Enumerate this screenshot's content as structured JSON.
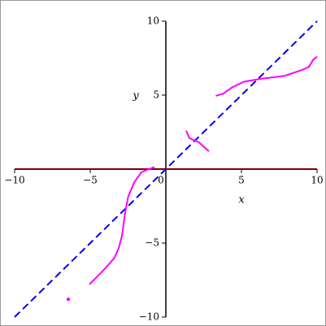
{
  "chart_data": {
    "type": "line",
    "x_label": "x",
    "y_label": "y",
    "xlim": [
      -10,
      10
    ],
    "ylim": [
      -10,
      10
    ],
    "xticks": [
      {
        "value": -10,
        "label": "−10"
      },
      {
        "value": -5,
        "label": "−5"
      },
      0,
      5,
      10
    ],
    "yticks": [
      {
        "value": -10,
        "label": "−10"
      },
      {
        "value": -5,
        "label": "−5"
      },
      5,
      10
    ],
    "series": [
      {
        "color": "#0000ee",
        "dashed": true,
        "x": [
          -10,
          10
        ],
        "values": [
          -10,
          10
        ]
      },
      {
        "color": "#800000",
        "x": [
          -10,
          10
        ],
        "values": [
          0,
          0
        ]
      },
      {
        "color": "#ff00ff",
        "x": [
          -5.05,
          -4,
          -3.4,
          -3.1,
          -2.9,
          -2.7,
          -2.5,
          -2.1,
          -1.6,
          -0.75,
          null,
          1.35,
          1.55,
          2.2,
          2.85,
          null,
          3.3,
          3.8,
          4.35,
          5.15,
          6.25,
          7.85,
          9.0,
          9.45,
          9.75,
          10
        ],
        "values": [
          -7.8,
          -6.7,
          -6.0,
          -5.3,
          -4.5,
          -3.0,
          -1.9,
          -0.9,
          -0.2,
          0.15,
          null,
          2.6,
          2.1,
          1.8,
          1.2,
          null,
          4.95,
          5.1,
          5.5,
          5.9,
          6.1,
          6.3,
          6.7,
          6.9,
          7.4,
          7.6
        ]
      },
      {
        "color": "#ff00ff",
        "marker": true,
        "x": [
          -6.45
        ],
        "values": [
          -8.8
        ]
      }
    ]
  }
}
